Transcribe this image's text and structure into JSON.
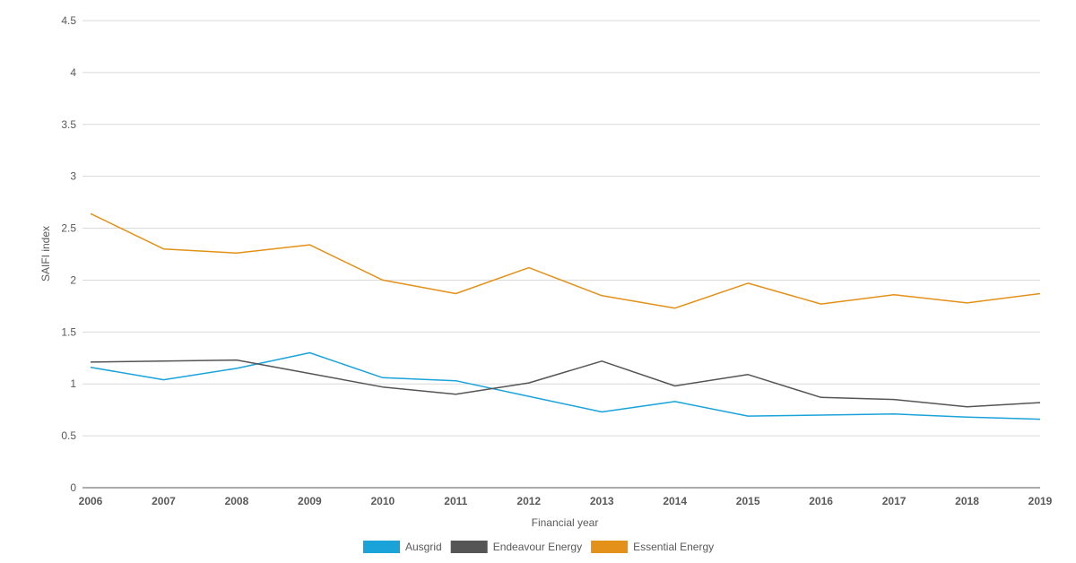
{
  "chart_data": {
    "type": "line",
    "xlabel": "Financial year",
    "ylabel": "SAIFI index",
    "ylim": [
      0,
      4.5
    ],
    "yticks": [
      "0",
      "0.5",
      "1",
      "1.5",
      "2",
      "2.5",
      "3",
      "3.5",
      "4",
      "4.5"
    ],
    "categories": [
      "2006",
      "2007",
      "2008",
      "2009",
      "2010",
      "2011",
      "2012",
      "2013",
      "2014",
      "2015",
      "2016",
      "2017",
      "2018",
      "2019"
    ],
    "grid": true,
    "legend_position": "bottom",
    "series": [
      {
        "name": "Ausgrid",
        "color": "#1aa3d9",
        "values": [
          1.16,
          1.04,
          1.15,
          1.3,
          1.06,
          1.03,
          0.88,
          0.73,
          0.83,
          0.69,
          0.7,
          0.71,
          0.68,
          0.66
        ]
      },
      {
        "name": "Endeavour Energy",
        "color": "#555555",
        "values": [
          1.21,
          1.22,
          1.23,
          1.1,
          0.97,
          0.9,
          1.01,
          1.22,
          0.98,
          1.09,
          0.87,
          0.85,
          0.78,
          0.82
        ]
      },
      {
        "name": "Essential Energy",
        "color": "#e39119",
        "values": [
          2.64,
          2.3,
          2.26,
          2.34,
          2.0,
          1.87,
          2.12,
          1.85,
          1.73,
          1.97,
          1.77,
          1.86,
          1.78,
          1.87
        ]
      }
    ]
  }
}
